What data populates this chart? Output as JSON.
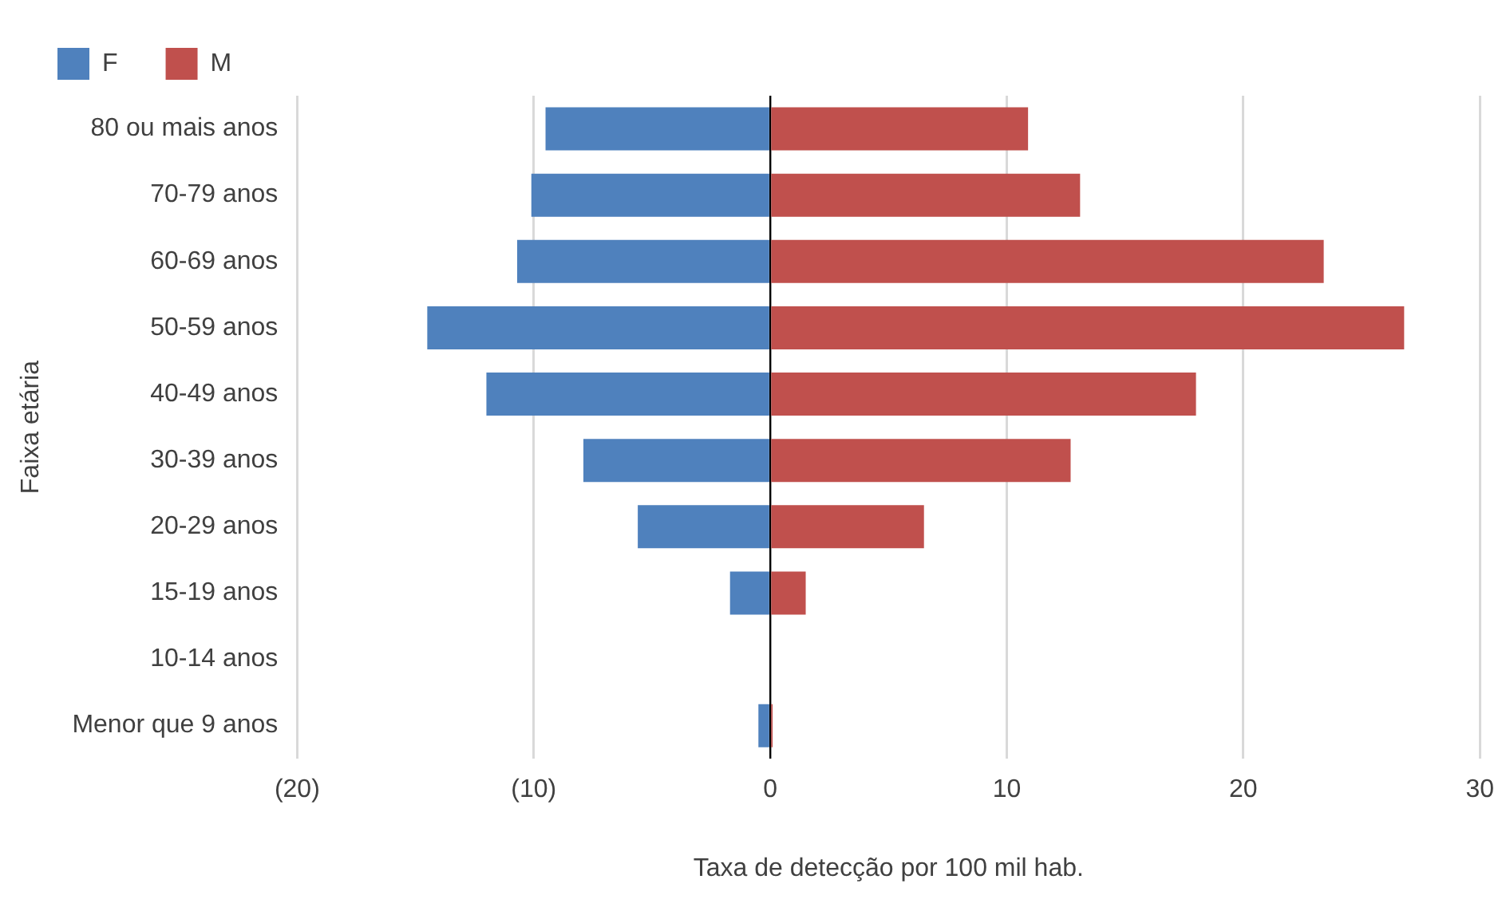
{
  "chart_data": {
    "type": "bar",
    "orientation": "horizontal",
    "stacked": true,
    "xlabel": "Taxa de detecção por 100 mil hab.",
    "ylabel": "Faixa etária",
    "categories": [
      "80 ou mais anos",
      "70-79 anos",
      "60-69 anos",
      "50-59 anos",
      "40-49 anos",
      "30-39 anos",
      "20-29 anos",
      "15-19 anos",
      "10-14 anos",
      "Menor que 9 anos"
    ],
    "series": [
      {
        "name": "F",
        "color": "#4f81bd",
        "values": [
          -9.5,
          -10.1,
          -10.7,
          -14.5,
          -12.0,
          -7.9,
          -5.6,
          -1.7,
          0,
          -0.5
        ]
      },
      {
        "name": "M",
        "color": "#c0504d",
        "values": [
          10.9,
          13.1,
          23.4,
          26.8,
          18.0,
          12.7,
          6.5,
          1.5,
          0,
          0.1
        ]
      }
    ],
    "xlim": [
      -20,
      30
    ],
    "xticks": [
      {
        "value": -20,
        "label": "(20)"
      },
      {
        "value": -10,
        "label": "(10)"
      },
      0,
      10,
      20,
      30
    ],
    "grid": "x",
    "legend": "top left"
  }
}
